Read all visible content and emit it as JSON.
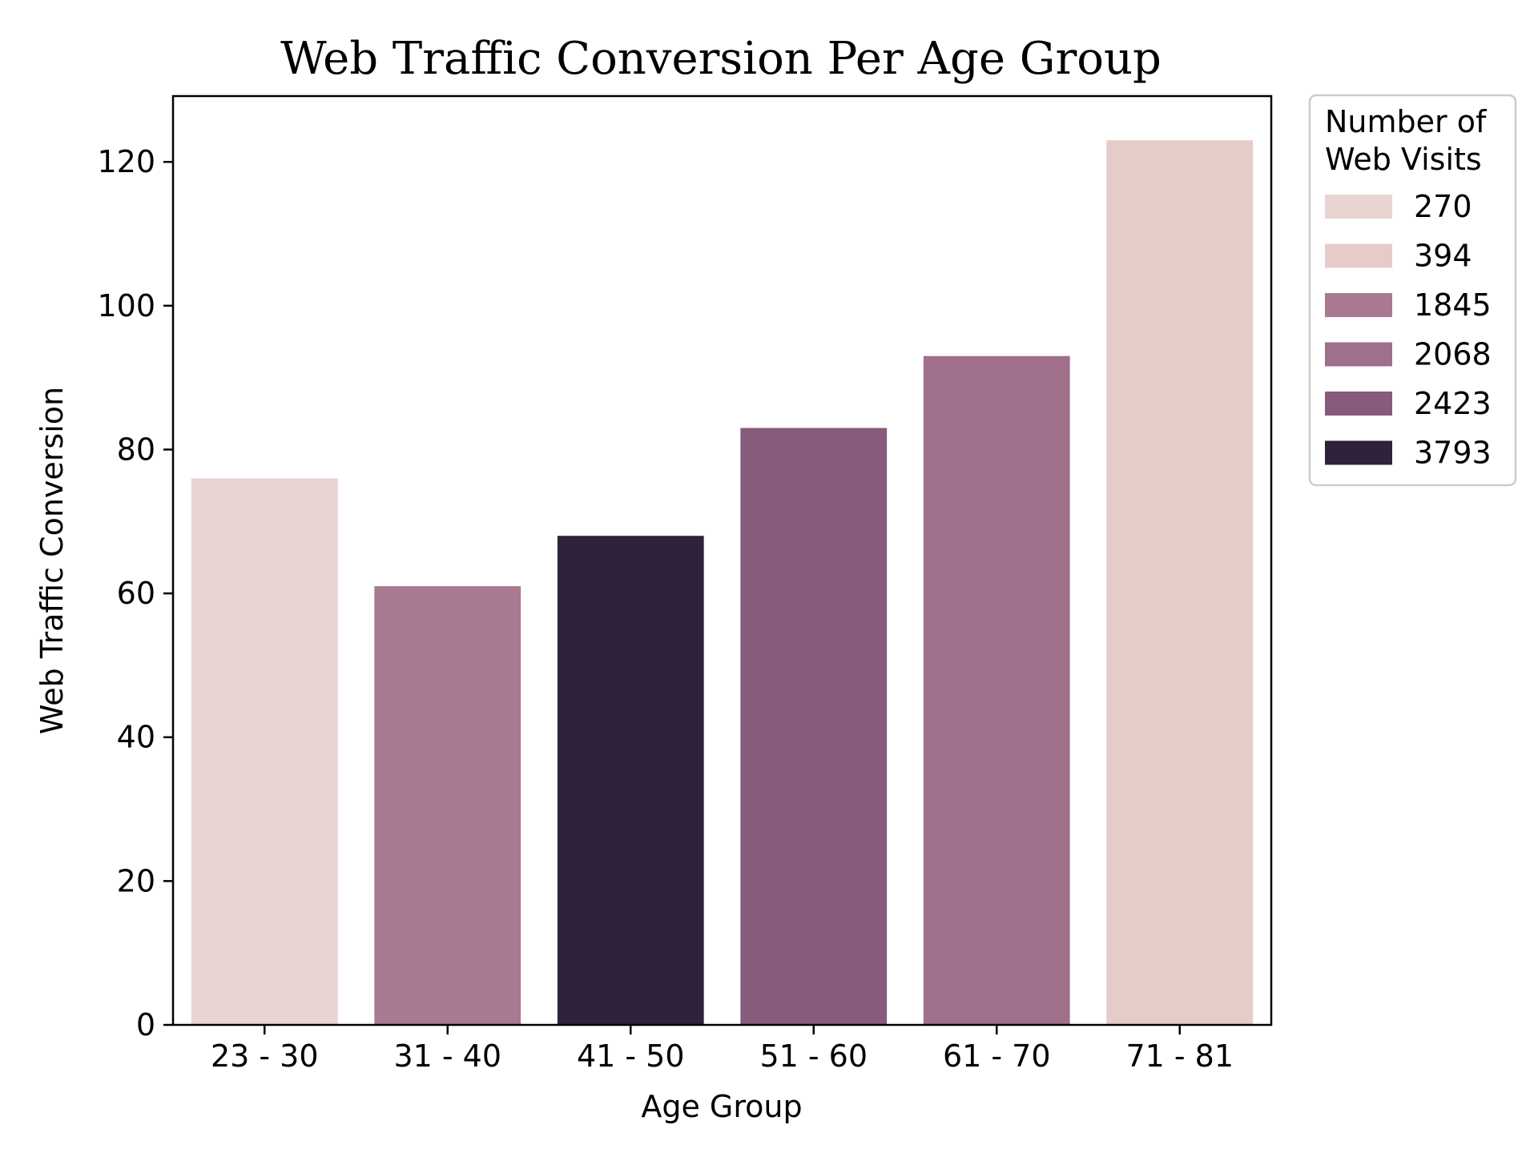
{
  "chart_data": {
    "type": "bar",
    "title": "Web Traffic Conversion Per Age Group",
    "xlabel": "Age Group",
    "ylabel": "Web Traffic Conversion",
    "categories": [
      "23 - 30",
      "31 - 40",
      "41 - 50",
      "51 - 60",
      "61 - 70",
      "71 - 81"
    ],
    "values": [
      76,
      61,
      68,
      83,
      93,
      123
    ],
    "hue_values": [
      "270",
      "1845",
      "3793",
      "2423",
      "2068",
      "394"
    ],
    "ylim": [
      0,
      129.15
    ],
    "yticks": [
      0,
      20,
      40,
      60,
      80,
      100,
      120
    ],
    "grid": false,
    "legend": {
      "title_lines": [
        "Number of",
        "Web Visits"
      ],
      "placement": "outside-top-right",
      "entries": [
        {
          "label": "270",
          "color": "#e8d4d0"
        },
        {
          "label": "394",
          "color": "#e6ccc8"
        },
        {
          "label": "1845",
          "color": "#a97891"
        },
        {
          "label": "2068",
          "color": "#9f6f8b"
        },
        {
          "label": "2423",
          "color": "#875b7c"
        },
        {
          "label": "3793",
          "color": "#2f223a"
        }
      ]
    },
    "bar_colors": [
      "#e8d4d0",
      "#a97891",
      "#2f223a",
      "#875b7c",
      "#9f6f8b",
      "#e6ccc8"
    ]
  }
}
